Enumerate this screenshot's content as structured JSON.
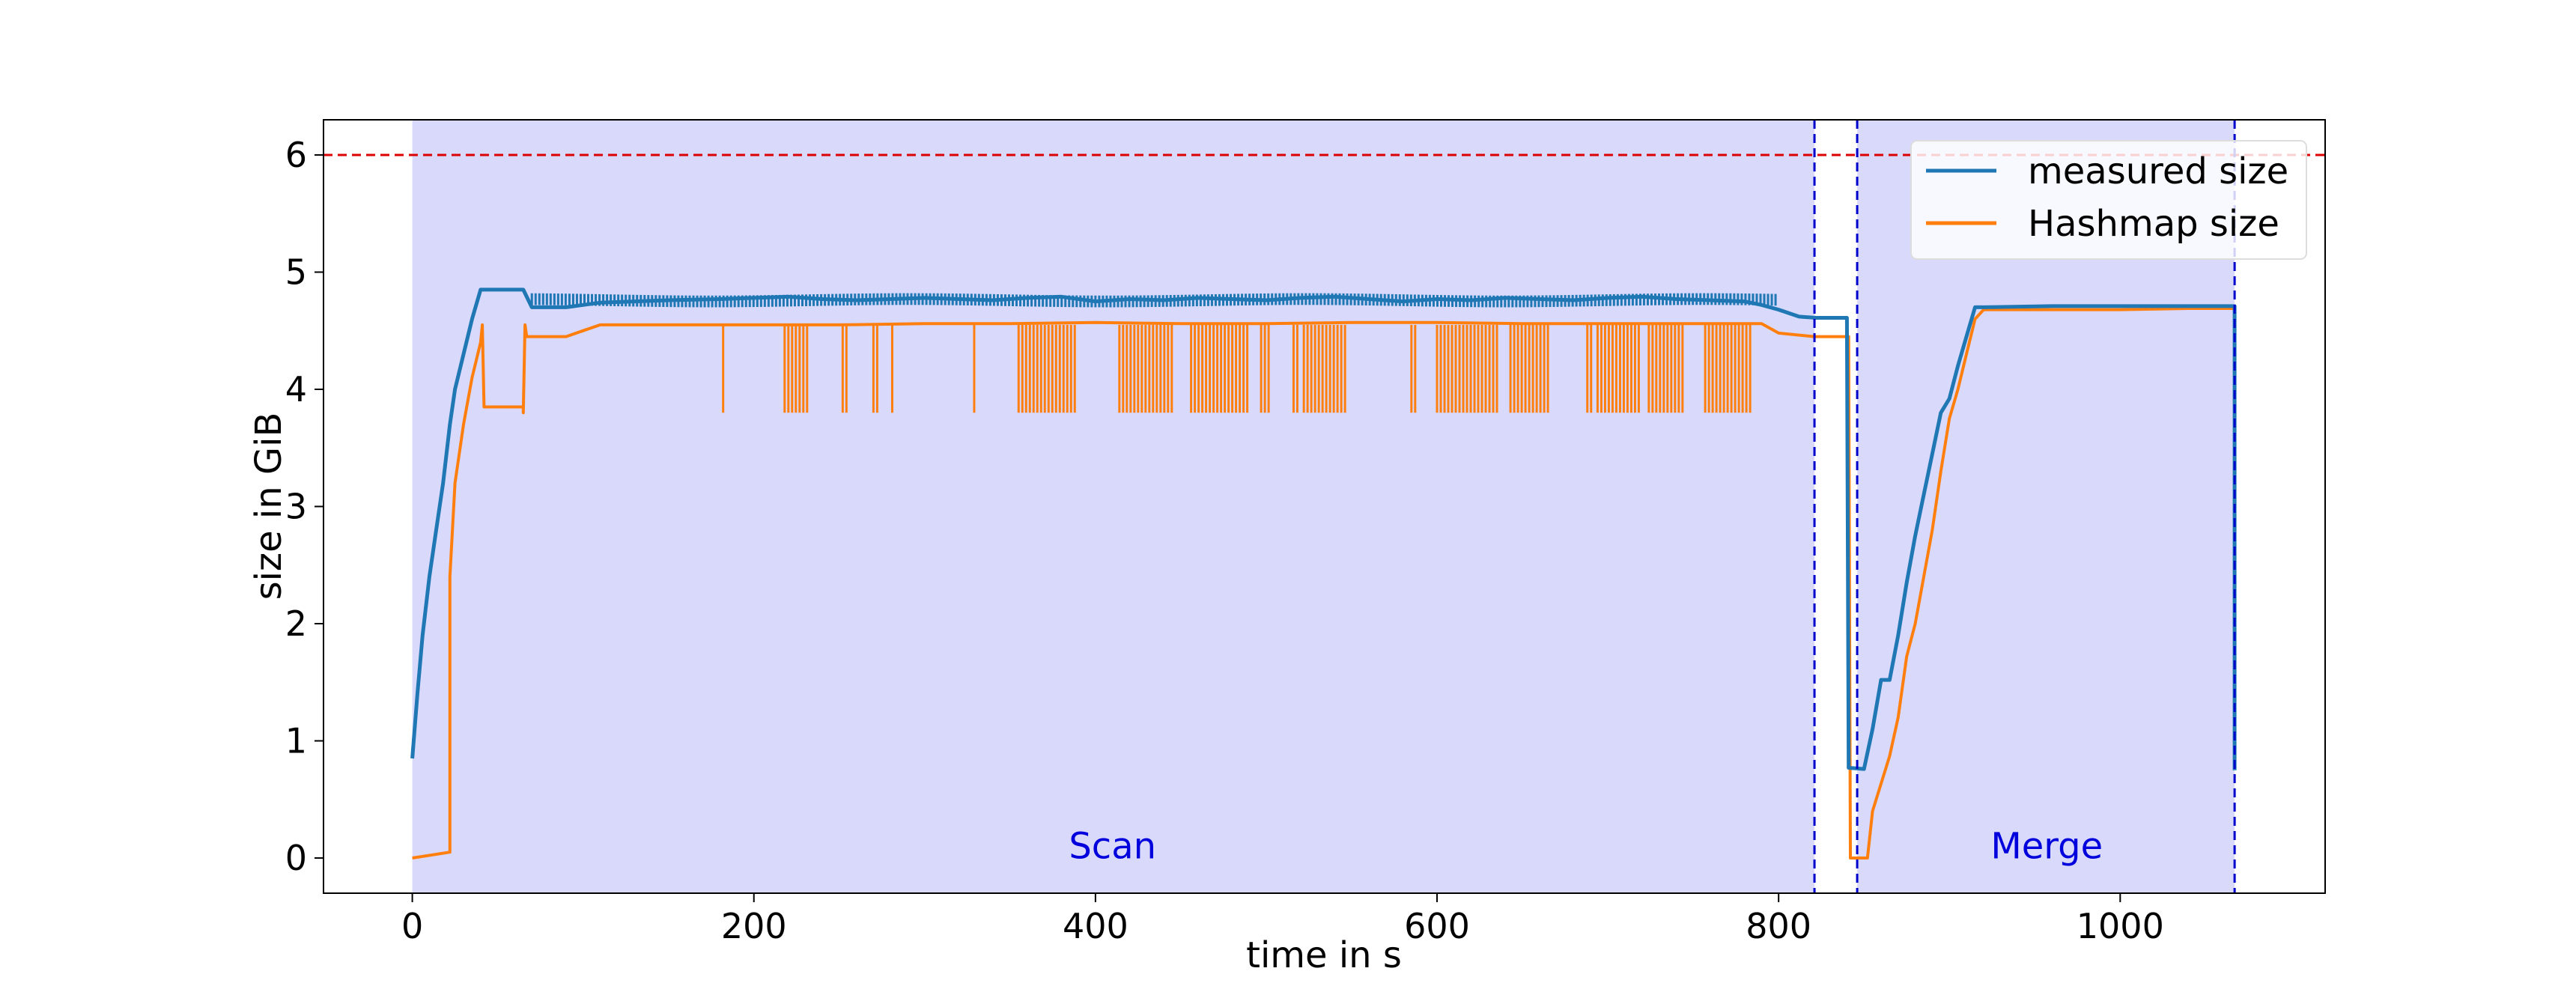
{
  "chart_data": {
    "type": "line",
    "xlabel": "time in s",
    "ylabel": "size in GiB",
    "xlim": [
      -52,
      1120
    ],
    "ylim": [
      -0.3,
      6.3
    ],
    "xticks": [
      0,
      200,
      400,
      600,
      800,
      1000
    ],
    "yticks": [
      0,
      1,
      2,
      3,
      4,
      5,
      6
    ],
    "grid": false,
    "legend_position": "top-right",
    "threshold_line": {
      "y": 6,
      "color": "#dd0000",
      "style": "dashed"
    },
    "phase_lines": {
      "x": [
        821,
        846,
        1067
      ],
      "color": "#0000cc",
      "style": "dashed"
    },
    "regions": [
      {
        "label": "Scan",
        "x_start": 0,
        "x_end": 821,
        "label_x": 410,
        "label_y": 0.1,
        "color": "#d9d9fc",
        "text_color": "#0000dd"
      },
      {
        "label": "Merge",
        "x_start": 846,
        "x_end": 1067,
        "label_x": 957,
        "label_y": 0.1,
        "color": "#d9d9fc",
        "text_color": "#0000dd"
      }
    ],
    "series": [
      {
        "name": "measured size",
        "color": "#1f77b4",
        "x": [
          0,
          3,
          6,
          10,
          14,
          18,
          22,
          25,
          30,
          35,
          40,
          45,
          55,
          65,
          70,
          80,
          90,
          100,
          110,
          130,
          150,
          180,
          200,
          220,
          240,
          260,
          280,
          300,
          320,
          340,
          360,
          380,
          400,
          420,
          440,
          460,
          480,
          500,
          520,
          540,
          560,
          580,
          600,
          620,
          640,
          660,
          680,
          700,
          720,
          740,
          760,
          780,
          790,
          800,
          812,
          822,
          840,
          841,
          850,
          855,
          860,
          865,
          870,
          875,
          880,
          885,
          890,
          895,
          900,
          905,
          910,
          915,
          920,
          960,
          1000,
          1040,
          1067,
          1067
        ],
        "y": [
          0.85,
          1.4,
          1.9,
          2.4,
          2.8,
          3.2,
          3.7,
          4.0,
          4.3,
          4.6,
          4.85,
          4.85,
          4.85,
          4.85,
          4.7,
          4.7,
          4.7,
          4.72,
          4.74,
          4.75,
          4.76,
          4.77,
          4.78,
          4.79,
          4.77,
          4.76,
          4.77,
          4.78,
          4.77,
          4.76,
          4.78,
          4.79,
          4.75,
          4.77,
          4.76,
          4.78,
          4.77,
          4.76,
          4.78,
          4.79,
          4.77,
          4.75,
          4.77,
          4.76,
          4.78,
          4.77,
          4.76,
          4.78,
          4.79,
          4.77,
          4.76,
          4.75,
          4.72,
          4.68,
          4.62,
          4.61,
          4.61,
          0.77,
          0.76,
          1.1,
          1.52,
          1.52,
          1.9,
          2.35,
          2.75,
          3.1,
          3.45,
          3.8,
          3.92,
          4.2,
          4.45,
          4.7,
          4.7,
          4.71,
          4.71,
          4.71,
          4.71,
          0.75
        ]
      },
      {
        "name": "Hashmap size",
        "color": "#ff7f0e",
        "x": [
          0,
          22,
          22,
          25,
          30,
          35,
          40,
          41,
          42,
          45,
          60,
          65,
          65,
          66,
          67,
          70,
          80,
          90,
          100,
          110,
          130,
          160,
          200,
          250,
          300,
          350,
          400,
          450,
          500,
          550,
          600,
          650,
          700,
          750,
          790,
          800,
          821,
          841,
          842,
          852,
          855,
          865,
          870,
          875,
          880,
          885,
          890,
          895,
          900,
          905,
          910,
          915,
          920,
          960,
          1000,
          1040,
          1067
        ],
        "y": [
          0.0,
          0.05,
          2.4,
          3.2,
          3.7,
          4.1,
          4.4,
          4.55,
          3.85,
          3.85,
          3.85,
          3.85,
          3.8,
          4.55,
          4.45,
          4.45,
          4.45,
          4.45,
          4.5,
          4.55,
          4.55,
          4.55,
          4.55,
          4.55,
          4.56,
          4.56,
          4.57,
          4.56,
          4.56,
          4.57,
          4.57,
          4.56,
          4.56,
          4.56,
          4.56,
          4.48,
          4.45,
          4.45,
          0.0,
          0.0,
          0.4,
          0.87,
          1.2,
          1.72,
          2.0,
          2.4,
          2.8,
          3.3,
          3.75,
          4.0,
          4.3,
          4.6,
          4.68,
          4.68,
          4.68,
          4.69,
          4.69
        ]
      }
    ],
    "hashmap_drop_bands": [
      {
        "x_start": 182,
        "x_end": 183,
        "low": 3.8,
        "high": 4.55
      },
      {
        "x_start": 218,
        "x_end": 232,
        "low": 3.8,
        "high": 4.55
      },
      {
        "x_start": 252,
        "x_end": 256,
        "low": 3.8,
        "high": 4.55
      },
      {
        "x_start": 270,
        "x_end": 274,
        "low": 3.8,
        "high": 4.55
      },
      {
        "x_start": 281,
        "x_end": 283,
        "low": 3.8,
        "high": 4.55
      },
      {
        "x_start": 329,
        "x_end": 331,
        "low": 3.8,
        "high": 4.55
      },
      {
        "x_start": 355,
        "x_end": 388,
        "low": 3.8,
        "high": 4.55
      },
      {
        "x_start": 414,
        "x_end": 446,
        "low": 3.8,
        "high": 4.55
      },
      {
        "x_start": 456,
        "x_end": 490,
        "low": 3.8,
        "high": 4.55
      },
      {
        "x_start": 497,
        "x_end": 503,
        "low": 3.8,
        "high": 4.55
      },
      {
        "x_start": 516,
        "x_end": 520,
        "low": 3.8,
        "high": 4.55
      },
      {
        "x_start": 522,
        "x_end": 548,
        "low": 3.8,
        "high": 4.55
      },
      {
        "x_start": 585,
        "x_end": 588,
        "low": 3.8,
        "high": 4.55
      },
      {
        "x_start": 600,
        "x_end": 637,
        "low": 3.8,
        "high": 4.55
      },
      {
        "x_start": 643,
        "x_end": 667,
        "low": 3.8,
        "high": 4.55
      },
      {
        "x_start": 688,
        "x_end": 692,
        "low": 3.8,
        "high": 4.55
      },
      {
        "x_start": 694,
        "x_end": 720,
        "low": 3.8,
        "high": 4.55
      },
      {
        "x_start": 724,
        "x_end": 745,
        "low": 3.8,
        "high": 4.55
      },
      {
        "x_start": 757,
        "x_end": 784,
        "low": 3.8,
        "high": 4.55
      }
    ]
  }
}
